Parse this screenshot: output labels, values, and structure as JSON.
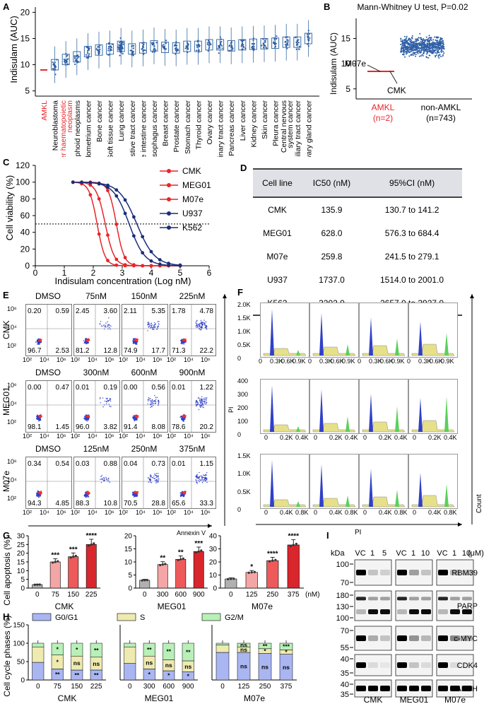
{
  "panels": {
    "A": "A",
    "B": "B",
    "C": "C",
    "D": "D",
    "E": "E",
    "F": "F",
    "G": "G",
    "H": "H",
    "I": "I"
  },
  "colors": {
    "blue": "#2f5fa7",
    "red": "#e8252a",
    "dark_red": "#c9161c",
    "navy": "#1a2f7a",
    "steel": "#3a6ea5",
    "flow_blue": "#3040c8",
    "flow_green": "#5bd05b",
    "flow_yellow": "#e6e08a"
  },
  "panelA": {
    "ylabel": "Indisulam (AUC)",
    "yticks": [
      "5",
      "10",
      "15",
      "20"
    ],
    "categories": [
      "AMKL",
      "Neuroblastoma",
      "Other haematopoietic neoplasm",
      "Lymphoid neoplasms",
      "Endometrium cancer",
      "Bone cancer",
      "Soft tissue cancer",
      "Lung cancer",
      "Upper aerodigestive tract cancer",
      "Large intestine cancer",
      "Oesophagus cancer",
      "Breast cancer",
      "Prostate cancer",
      "Stomach cancer",
      "Thyroid cancer",
      "Ovary cancer",
      "Urinary tract cancer",
      "Pancreas cancer",
      "Liver cancer",
      "Kidney cancer",
      "Skin cancer",
      "Pleura cancer",
      "Central nervous system cancer",
      "Biliary tract cancer",
      "Salivary gland cancer"
    ],
    "red_categories": [
      "AMKL",
      "Other haematopoietic neoplasm"
    ]
  },
  "panelB": {
    "title": "Mann-Whitney U test, P=0.02",
    "ylabel": "Indisulam (AUC)",
    "yticks": [
      "5",
      "10",
      "15"
    ],
    "group1": "AMKL",
    "group1_n": "(n=2)",
    "group2": "non-AMKL",
    "group2_n": "(n=743)",
    "annot1": "M07e",
    "annot2": "CMK"
  },
  "chart_data": [
    {
      "type": "line",
      "title": "Cell viability dose-response",
      "xlabel": "Indisulam concentration (Log nM)",
      "ylabel": "Cell viability (%)",
      "xlim": [
        0,
        6
      ],
      "ylim": [
        0,
        120
      ],
      "xticks": [
        "0",
        "1",
        "2",
        "3",
        "4",
        "5",
        "6"
      ],
      "yticks": [
        "0",
        "20",
        "40",
        "60",
        "80",
        "100",
        "120"
      ],
      "reference_line": 50,
      "series": [
        {
          "name": "CMK",
          "log_ic50": 2.133,
          "color": "#e8252a"
        },
        {
          "name": "MEG01",
          "log_ic50": 2.798,
          "color": "#e8252a"
        },
        {
          "name": "M07e",
          "log_ic50": 2.415,
          "color": "#e8252a"
        },
        {
          "name": "U937",
          "log_ic50": 3.24,
          "color": "#1a2f7a"
        },
        {
          "name": "K562",
          "log_ic50": 3.505,
          "color": "#1a2f7a"
        }
      ]
    },
    {
      "type": "bar",
      "title": "CMK",
      "ylabel": "Cell apoptosis (%)",
      "categories": [
        "0",
        "75",
        "150",
        "225"
      ],
      "values": [
        2,
        15,
        18,
        25
      ],
      "ylim": [
        0,
        30
      ],
      "yticks": [
        "0",
        "5",
        "10",
        "15",
        "20",
        "25",
        "30"
      ],
      "significance": [
        "",
        "***",
        "***",
        "****"
      ]
    },
    {
      "type": "bar",
      "title": "MEG01",
      "categories": [
        "0",
        "300",
        "600",
        "900"
      ],
      "values": [
        3,
        9,
        11,
        14
      ],
      "ylim": [
        0,
        20
      ],
      "yticks": [
        "0",
        "5",
        "10",
        "15",
        "20"
      ],
      "significance": [
        "",
        "**",
        "**",
        "***"
      ]
    },
    {
      "type": "bar",
      "title": "M07e",
      "categories": [
        "0",
        "125",
        "250",
        "375"
      ],
      "unit": "(nM)",
      "values": [
        7,
        12,
        21,
        33
      ],
      "ylim": [
        0,
        40
      ],
      "yticks": [
        "0",
        "10",
        "20",
        "30",
        "40"
      ],
      "significance": [
        "",
        "*",
        "****",
        "****"
      ]
    },
    {
      "type": "bar",
      "title": "Cell cycle phases",
      "ylabel": "Cell cycle phases (%)",
      "stacked": true,
      "legend": [
        "G0/G1",
        "S",
        "G2/M"
      ],
      "groups": [
        {
          "name": "CMK",
          "categories": [
            "0",
            "75",
            "150",
            "225"
          ],
          "G0G1": [
            48,
            30,
            27,
            27
          ],
          "S": [
            42,
            38,
            38,
            35
          ],
          "G2M": [
            10,
            32,
            35,
            38
          ],
          "sig_S": [
            "",
            "*",
            "ns",
            "ns"
          ],
          "sig_G0": [
            "",
            "**",
            "**",
            "**"
          ],
          "sig_G2": [
            "",
            "*",
            "*",
            "**"
          ]
        },
        {
          "name": "MEG01",
          "categories": [
            "0",
            "300",
            "600",
            "900"
          ],
          "G0G1": [
            45,
            30,
            25,
            22
          ],
          "S": [
            45,
            35,
            30,
            30
          ],
          "G2M": [
            10,
            35,
            45,
            48
          ],
          "sig_S": [
            "",
            "ns",
            "ns",
            "ns"
          ],
          "sig_G0": [
            "",
            "*",
            "*",
            "*"
          ],
          "sig_G2": [
            "",
            "**",
            "**",
            "**"
          ]
        },
        {
          "name": "M07e",
          "categories": [
            "0",
            "125",
            "250",
            "375"
          ],
          "G0G1": [
            75,
            75,
            72,
            70
          ],
          "S": [
            20,
            15,
            13,
            12
          ],
          "G2M": [
            5,
            10,
            15,
            18
          ],
          "sig_S": [
            "",
            "ns",
            "*",
            "*"
          ],
          "sig_G0": [
            "",
            "ns",
            "ns",
            "ns"
          ],
          "sig_G2": [
            "",
            "ns",
            "**",
            "***"
          ]
        }
      ],
      "ylim": [
        0,
        150
      ],
      "yticks": [
        "0",
        "50",
        "100",
        "150"
      ]
    }
  ],
  "panelD": {
    "headers": [
      "Cell line",
      "IC50 (nM)",
      "95%CI (nM)"
    ],
    "rows": [
      [
        "CMK",
        "135.9",
        "130.7 to 141.2"
      ],
      [
        "MEG01",
        "628.0",
        "576.3 to 684.4"
      ],
      [
        "M07e",
        "259.8",
        "241.5 to 279.1"
      ],
      [
        "U937",
        "1737.0",
        "1514.0 to 2001.0"
      ],
      [
        "K562",
        "3202.0",
        "2657.0 to 3927.0"
      ]
    ]
  },
  "panelE": {
    "xlabel": "Annexin V",
    "ylabel": "PI",
    "rows": [
      {
        "cell": "CMK",
        "doses": [
          "DMSO",
          "75nM",
          "150nM",
          "225nM"
        ],
        "quads": [
          [
            "0.20",
            "0.59",
            "96.7",
            "2.53"
          ],
          [
            "2.45",
            "3.60",
            "81.2",
            "12.8"
          ],
          [
            "2.11",
            "5.35",
            "74.9",
            "17.7"
          ],
          [
            "1.78",
            "4.78",
            "71.3",
            "22.2"
          ]
        ]
      },
      {
        "cell": "MEG01",
        "doses": [
          "DMSO",
          "300nM",
          "600nM",
          "900nM"
        ],
        "quads": [
          [
            "0.00",
            "0.47",
            "98.1",
            "1.45"
          ],
          [
            "0.01",
            "0.19",
            "96.0",
            "3.82"
          ],
          [
            "0.00",
            "0.56",
            "91.4",
            "8.08"
          ],
          [
            "0.01",
            "1.22",
            "78.6",
            "20.2"
          ]
        ]
      },
      {
        "cell": "M07e",
        "doses": [
          "DMSO",
          "125nM",
          "250nM",
          "375nM"
        ],
        "quads": [
          [
            "0.34",
            "0.54",
            "94.3",
            "4.85"
          ],
          [
            "0.03",
            "0.88",
            "88.3",
            "10.8"
          ],
          [
            "0.04",
            "0.73",
            "70.5",
            "28.8"
          ],
          [
            "0.01",
            "1.15",
            "65.6",
            "33.3"
          ]
        ]
      }
    ],
    "yticks": [
      "10⁶",
      "10⁴",
      "10²"
    ],
    "xticks": [
      "10²",
      "10⁴",
      "10⁶"
    ]
  },
  "panelF": {
    "xlabel": "PI",
    "ylabel": "Count",
    "rows": [
      {
        "doses": [
          "DMSO",
          "75nM",
          "150nM",
          "225nM"
        ],
        "yticks": [
          "2.0K",
          "1.5K",
          "1.0K",
          "0.5K",
          "0"
        ],
        "xticks": [
          "0",
          "0.3K",
          "0.6K",
          "0.9K"
        ]
      },
      {
        "doses": [
          "DMSO",
          "300nM",
          "600nM",
          "900nM"
        ],
        "yticks": [
          "400",
          "300",
          "200",
          "100",
          "0"
        ],
        "xticks": [
          "0",
          "0.2K",
          "0.4K"
        ]
      },
      {
        "doses": [
          "DMSO",
          "125nM",
          "250nM",
          "375nM"
        ],
        "yticks": [
          "1.5K",
          "1.0K",
          "0.5K",
          "0"
        ],
        "xticks": [
          "0",
          "0.4K",
          "0.8K"
        ]
      }
    ]
  },
  "panelI": {
    "kda": "kDa",
    "unit": "(μM)",
    "lanes": [
      "VC",
      "1",
      "5",
      "VC",
      "1",
      "10",
      "VC",
      "1",
      "10"
    ],
    "cells": [
      "CMK",
      "MEG01",
      "M07e"
    ],
    "proteins": [
      {
        "name": "RBM39",
        "markers": [
          "100",
          "70"
        ]
      },
      {
        "name": "PARP",
        "markers": [
          "180",
          "130",
          "100"
        ]
      },
      {
        "name": "c-MYC",
        "markers": [
          "70",
          "55"
        ]
      },
      {
        "name": "CDK4",
        "markers": [
          "40",
          "35"
        ]
      },
      {
        "name": "GAPDH",
        "markers": [
          "40",
          "35"
        ]
      }
    ]
  }
}
